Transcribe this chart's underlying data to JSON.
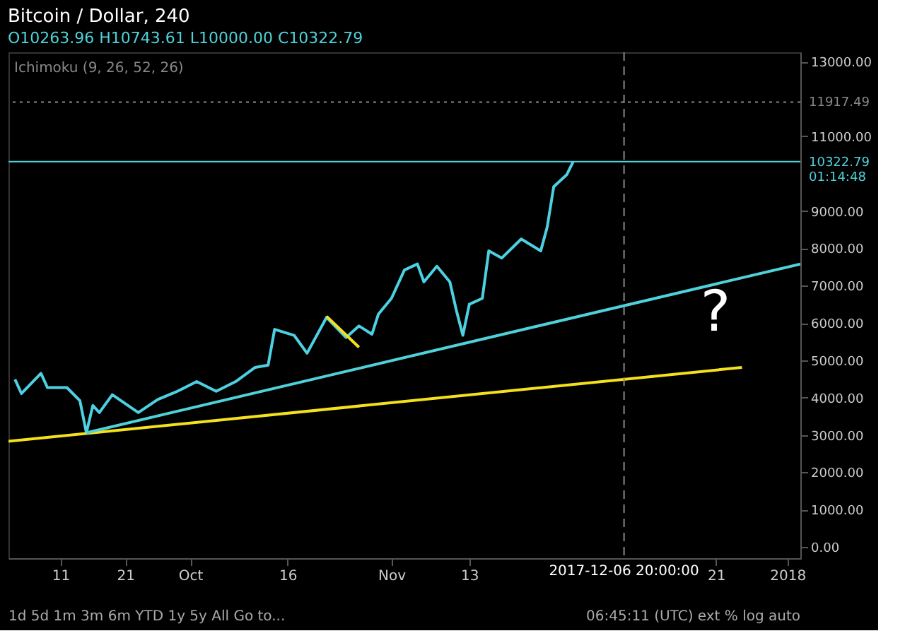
{
  "chart_data": {
    "type": "line",
    "title": "Bitcoin / Dollar, 240",
    "subtitle": "O10263.96 H10743.61 L10000.00 C10322.79",
    "series": [
      {
        "color": "#4dd0e1",
        "x": [
          "2017-09-04",
          "2017-09-05",
          "2017-09-08",
          "2017-09-09",
          "2017-09-12",
          "2017-09-14",
          "2017-09-15",
          "2017-09-16",
          "2017-09-17",
          "2017-09-19",
          "2017-09-23",
          "2017-09-26",
          "2017-09-29",
          "2017-10-02",
          "2017-10-05",
          "2017-10-08",
          "2017-10-11",
          "2017-10-13",
          "2017-10-14",
          "2017-10-17",
          "2017-10-19",
          "2017-10-22",
          "2017-10-25",
          "2017-10-27",
          "2017-10-29",
          "2017-10-30",
          "2017-11-01",
          "2017-11-03",
          "2017-11-05",
          "2017-11-06",
          "2017-11-08",
          "2017-11-10",
          "2017-11-11",
          "2017-11-12",
          "2017-11-13",
          "2017-11-15",
          "2017-11-16",
          "2017-11-18",
          "2017-11-21",
          "2017-11-24",
          "2017-11-25",
          "2017-11-26",
          "2017-11-28",
          "2017-11-29"
        ],
        "values": [
          4490,
          4110,
          4650,
          4270,
          4270,
          3920,
          3060,
          3790,
          3600,
          4080,
          3600,
          3950,
          4170,
          4430,
          4170,
          4430,
          4810,
          4870,
          5830,
          5670,
          5190,
          6150,
          5610,
          5920,
          5700,
          6240,
          6660,
          7420,
          7580,
          7100,
          7520,
          7100,
          6340,
          5670,
          6500,
          6660,
          7930,
          7740,
          8250,
          7930,
          8570,
          9650,
          9970,
          10320
        ]
      },
      {
        "color": "#f5e11b",
        "x": [
          "2017-09-03",
          "2017-12-25"
        ],
        "values": [
          2830,
          4810
        ]
      },
      {
        "color": "#4fd1d9",
        "x": [
          "2017-09-15",
          "2018-01-03"
        ],
        "values": [
          3060,
          7580
        ]
      },
      {
        "color": "#f5e11b",
        "x": [
          "2017-10-22",
          "2017-10-27"
        ],
        "values": [
          6180,
          5350
        ]
      }
    ],
    "xlim": [
      "2017-09-03",
      "2018-01-03"
    ],
    "xticks": [
      {
        "value": "2017-09-11",
        "label": "11"
      },
      {
        "value": "2017-09-21",
        "label": "21"
      },
      {
        "value": "2017-10-01",
        "label": "Oct"
      },
      {
        "value": "2017-10-16",
        "label": "16"
      },
      {
        "value": "2017-11-01",
        "label": "Nov"
      },
      {
        "value": "2017-11-13",
        "label": "13"
      },
      {
        "value": "2017-12-21",
        "label": "21"
      },
      {
        "value": "2018-01-01",
        "label": "2018"
      }
    ],
    "ylim": [
      -300,
      13250
    ],
    "yticks": [
      {
        "value": 0,
        "label": "0.00"
      },
      {
        "value": 1000,
        "label": "1000.00"
      },
      {
        "value": 2000,
        "label": "2000.00"
      },
      {
        "value": 3000,
        "label": "3000.00"
      },
      {
        "value": 4000,
        "label": "4000.00"
      },
      {
        "value": 5000,
        "label": "5000.00"
      },
      {
        "value": 6000,
        "label": "6000.00"
      },
      {
        "value": 7000,
        "label": "7000.00"
      },
      {
        "value": 8000,
        "label": "8000.00"
      },
      {
        "value": 9000,
        "label": "9000.00"
      },
      {
        "value": 11000,
        "label": "11000.00"
      },
      {
        "value": 13000,
        "label": "13000.00"
      }
    ],
    "ref_lines": [
      {
        "axis": "y",
        "value": 10322.79,
        "label": "10322.79",
        "color": "#4fd1d9",
        "line_style": "solid"
      },
      {
        "axis": "y",
        "value": 11917.49,
        "label": "11917.49",
        "color": "#888888",
        "line_style": "dotted"
      },
      {
        "axis": "x",
        "value": "2017-12-06T20:00",
        "label": "2017-12-06 20:00:00",
        "color": "#888888",
        "line_style": "dashed"
      }
    ],
    "annotations": [
      "Ichimoku (9, 26, 52, 26)",
      "01:14:48",
      "?",
      "1d  5d  1m  3m  6m  YTD  1y  5y  All  Go to...",
      "06:45:11 (UTC)  ext  %  log  auto"
    ],
    "line_style": "solid",
    "marker": "none"
  }
}
